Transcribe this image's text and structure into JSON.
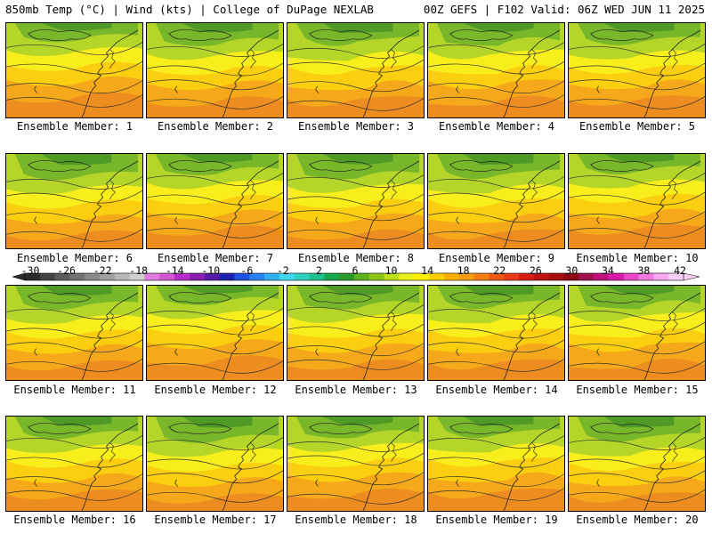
{
  "header": {
    "title_left": "850mb Temp (°C) | Wind (kts) | College of DuPage NEXLAB",
    "title_right": "00Z GEFS | F102 Valid: 06Z WED JUN 11 2025"
  },
  "colorbar": {
    "tick_labels": [
      "-30",
      "-26",
      "-22",
      "-18",
      "-14",
      "-10",
      "-6",
      "-2",
      "2",
      "6",
      "10",
      "14",
      "18",
      "22",
      "26",
      "30",
      "34",
      "38",
      "42"
    ],
    "colors": [
      "#2b2b2b",
      "#444444",
      "#5c5c5c",
      "#737373",
      "#8a8a8a",
      "#a0a0a0",
      "#b7b7b7",
      "#cfcfcf",
      "#e07be0",
      "#d257d2",
      "#b62cc8",
      "#8a1fb0",
      "#5a1aa8",
      "#2020b0",
      "#2050e0",
      "#2a82f0",
      "#30b0f0",
      "#40d8f0",
      "#30d0c0",
      "#20c090",
      "#18a850",
      "#2c9a2c",
      "#5cb31e",
      "#8cc61a",
      "#bde21a",
      "#eaf01a",
      "#fff000",
      "#ffd000",
      "#ffb000",
      "#f79a14",
      "#f47d14",
      "#f05a14",
      "#e83a14",
      "#d81e14",
      "#c01212",
      "#a80e0e",
      "#8c0a14",
      "#a0104a",
      "#c0107a",
      "#d81aa8",
      "#e848c8",
      "#f07ae0",
      "#f8a8f0",
      "#fbd0f8"
    ],
    "legend_colors": {
      "cold_green": "#4f9a26",
      "green": "#79b72a",
      "light_green": "#b5d628",
      "yellow": "#f7ee1b",
      "gold": "#fbcf10",
      "orange": "#f4a81a",
      "dark_orange": "#ee8d1f"
    }
  },
  "panels": [
    {
      "label": "Ensemble Member: 1",
      "icon": "map-panel"
    },
    {
      "label": "Ensemble Member: 2",
      "icon": "map-panel"
    },
    {
      "label": "Ensemble Member: 3",
      "icon": "map-panel"
    },
    {
      "label": "Ensemble Member: 4",
      "icon": "map-panel"
    },
    {
      "label": "Ensemble Member: 5",
      "icon": "map-panel"
    },
    {
      "label": "Ensemble Member: 6",
      "icon": "map-panel"
    },
    {
      "label": "Ensemble Member: 7",
      "icon": "map-panel"
    },
    {
      "label": "Ensemble Member: 8",
      "icon": "map-panel"
    },
    {
      "label": "Ensemble Member: 9",
      "icon": "map-panel"
    },
    {
      "label": "Ensemble Member: 10",
      "icon": "map-panel"
    },
    {
      "label": "Ensemble Member: 11",
      "icon": "map-panel"
    },
    {
      "label": "Ensemble Member: 12",
      "icon": "map-panel"
    },
    {
      "label": "Ensemble Member: 13",
      "icon": "map-panel"
    },
    {
      "label": "Ensemble Member: 14",
      "icon": "map-panel"
    },
    {
      "label": "Ensemble Member: 15",
      "icon": "map-panel"
    },
    {
      "label": "Ensemble Member: 16",
      "icon": "map-panel"
    },
    {
      "label": "Ensemble Member: 17",
      "icon": "map-panel"
    },
    {
      "label": "Ensemble Member: 18",
      "icon": "map-panel"
    },
    {
      "label": "Ensemble Member: 19",
      "icon": "map-panel"
    },
    {
      "label": "Ensemble Member: 20",
      "icon": "map-panel"
    }
  ]
}
